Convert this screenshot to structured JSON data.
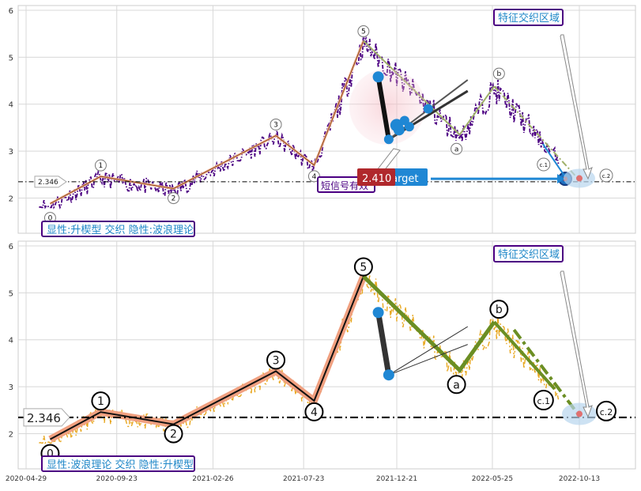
{
  "chart_data": [
    {
      "type": "line",
      "ylim": [
        1.25,
        6.1
      ],
      "yticks": [
        2,
        3,
        4,
        5,
        6
      ],
      "x_dates": [
        "2020-04-29",
        "2020-09-23",
        "2021-02-26",
        "2021-07-23",
        "2021-12-21",
        "2022-05-25",
        "2022-10-13"
      ],
      "grid": true,
      "reference_level": 2.346,
      "reference_label": "2.346",
      "wave_points": [
        {
          "label": "0",
          "date": "2020-06-07",
          "value": 1.88
        },
        {
          "label": "1",
          "date": "2020-08-28",
          "value": 2.46
        },
        {
          "label": "2",
          "date": "2020-12-24",
          "value": 2.2
        },
        {
          "label": "3",
          "date": "2021-06-08",
          "value": 3.33
        },
        {
          "label": "4",
          "date": "2021-08-09",
          "value": 2.7
        },
        {
          "label": "5",
          "date": "2021-10-28",
          "value": 5.35
        },
        {
          "label": "a",
          "date": "2022-04-02",
          "value": 3.35
        },
        {
          "label": "b",
          "date": "2022-05-28",
          "value": 4.38
        },
        {
          "label": "c.1",
          "date": "2022-09-03",
          "value": 2.95
        },
        {
          "label": "c.2",
          "date": "2022-10-13",
          "value": 2.38
        }
      ],
      "callout_price": "2.410",
      "callout_target": "target",
      "signal_label": "短信号有效",
      "feature_label": "特征交织区域",
      "title_box": "显性:升楔型 交织 隐性:波浪理论"
    },
    {
      "type": "line",
      "ylim": [
        1.25,
        6.1
      ],
      "yticks": [
        2,
        3,
        4,
        5,
        6
      ],
      "x_dates": [
        "2020-04-29",
        "2020-09-23",
        "2021-02-26",
        "2021-07-23",
        "2021-12-21",
        "2022-05-25",
        "2022-10-13"
      ],
      "grid": true,
      "reference_level": 2.346,
      "reference_label": "2.346",
      "wave_points": [
        {
          "label": "0",
          "date": "2020-06-07",
          "value": 1.88
        },
        {
          "label": "1",
          "date": "2020-08-28",
          "value": 2.46
        },
        {
          "label": "2",
          "date": "2020-12-24",
          "value": 2.2
        },
        {
          "label": "3",
          "date": "2021-06-08",
          "value": 3.33
        },
        {
          "label": "4",
          "date": "2021-08-09",
          "value": 2.7
        },
        {
          "label": "5",
          "date": "2021-10-28",
          "value": 5.35
        },
        {
          "label": "a",
          "date": "2022-04-02",
          "value": 3.35
        },
        {
          "label": "b",
          "date": "2022-05-28",
          "value": 4.38
        },
        {
          "label": "c.1",
          "date": "2022-09-03",
          "value": 2.95
        },
        {
          "label": "c.2",
          "date": "2022-10-13",
          "value": 2.38
        }
      ],
      "feature_label": "特征交织区域",
      "title_box": "显性:波浪理论 交织 隐性:升楔型"
    }
  ],
  "colors": {
    "price_top": "#4b0082",
    "price_bottom": "#e8a71f",
    "wave_top": "#8b4513",
    "wave_bottom_bg": "#f0a080",
    "abc_top": "#9fb069",
    "abc_bottom": "#6b8e23",
    "marker_blue": "#1f87d4",
    "box_border": "#4b0082",
    "box_text": "#1f87c8"
  }
}
